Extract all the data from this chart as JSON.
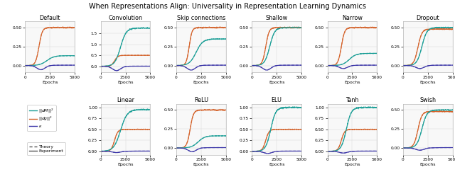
{
  "title": "When Representations Align: Universality in Representation Learning Dynamics",
  "subplots_row1": [
    "Default",
    "Convolution",
    "Skip connections",
    "Shallow",
    "Narrow",
    "Dropout"
  ],
  "subplots_row2": [
    "Linear",
    "ReLU",
    "ELU",
    "Tanh",
    "Swish"
  ],
  "xlabel": "Epochs",
  "x_ticks": [
    0,
    2500,
    5000
  ],
  "x_max": 5000,
  "colors": {
    "dM": "#1a9e96",
    "dg": "#d4622a",
    "kappa": "#3b35a8"
  },
  "subplot_params": {
    "Default": {
      "ylim": [
        -0.09,
        0.58
      ],
      "yticks": [
        0.0,
        0.25,
        0.5
      ],
      "dM_plateau": 0.13,
      "dM_x0": 2200,
      "dM_k": 0.0028,
      "dg_plateau": 0.5,
      "dg_x0": 1400,
      "dg_k": 0.006,
      "kappa_min": -0.055,
      "kappa_x0": 1600,
      "kappa_recover": 1800
    },
    "Convolution": {
      "ylim": [
        -0.28,
        2.05
      ],
      "yticks": [
        0.0,
        0.5,
        1.0,
        1.5
      ],
      "dM_plateau": 1.75,
      "dM_x0": 2000,
      "dM_k": 0.0035,
      "dg_plateau": 0.5,
      "dg_x0": 1400,
      "dg_k": 0.006,
      "kappa_min": -0.2,
      "kappa_x0": 1600,
      "kappa_recover": 1800
    },
    "Skip connections": {
      "ylim": [
        -0.09,
        0.58
      ],
      "yticks": [
        0.0,
        0.25,
        0.5
      ],
      "dM_plateau": 0.35,
      "dM_x0": 2000,
      "dM_k": 0.003,
      "dg_plateau": 0.5,
      "dg_x0": 1300,
      "dg_k": 0.007,
      "kappa_min": -0.06,
      "kappa_x0": 1500,
      "kappa_recover": 1700
    },
    "Shallow": {
      "ylim": [
        -0.09,
        0.58
      ],
      "yticks": [
        0.0,
        0.25,
        0.5
      ],
      "dM_plateau": 0.5,
      "dM_x0": 1800,
      "dM_k": 0.004,
      "dg_plateau": 0.5,
      "dg_x0": 1400,
      "dg_k": 0.006,
      "kappa_min": -0.06,
      "kappa_x0": 1500,
      "kappa_recover": 1700
    },
    "Narrow": {
      "ylim": [
        -0.09,
        0.58
      ],
      "yticks": [
        0.0,
        0.25,
        0.5
      ],
      "dM_plateau": 0.16,
      "dM_x0": 2200,
      "dM_k": 0.003,
      "dg_plateau": 0.5,
      "dg_x0": 1400,
      "dg_k": 0.006,
      "kappa_min": -0.04,
      "kappa_x0": 1600,
      "kappa_recover": 1800
    },
    "Dropout": {
      "ylim": [
        -0.09,
        0.58
      ],
      "yticks": [
        0.0,
        0.25,
        0.5
      ],
      "dM_plateau": 0.5,
      "dM_x0": 1900,
      "dM_k": 0.004,
      "dg_plateau": 0.48,
      "dg_x0": 1500,
      "dg_k": 0.005,
      "kappa_min": -0.04,
      "kappa_x0": 1700,
      "kappa_recover": 1900
    },
    "Linear": {
      "ylim": [
        -0.08,
        1.08
      ],
      "yticks": [
        0.0,
        0.25,
        0.5,
        0.75,
        1.0
      ],
      "dM_plateau": 0.95,
      "dM_x0": 2000,
      "dM_k": 0.003,
      "dg_plateau": 0.5,
      "dg_x0": 1400,
      "dg_k": 0.006,
      "kappa_min": -0.03,
      "kappa_x0": 1600,
      "kappa_recover": 1800
    },
    "ReLU": {
      "ylim": [
        -0.09,
        0.58
      ],
      "yticks": [
        0.0,
        0.25,
        0.5
      ],
      "dM_plateau": 0.16,
      "dM_x0": 2200,
      "dM_k": 0.003,
      "dg_plateau": 0.5,
      "dg_x0": 1400,
      "dg_k": 0.006,
      "kappa_min": -0.05,
      "kappa_x0": 1600,
      "kappa_recover": 1800
    },
    "ELU": {
      "ylim": [
        -0.08,
        1.08
      ],
      "yticks": [
        0.0,
        0.25,
        0.5,
        0.75,
        1.0
      ],
      "dM_plateau": 1.0,
      "dM_x0": 1900,
      "dM_k": 0.004,
      "dg_plateau": 0.5,
      "dg_x0": 1400,
      "dg_k": 0.006,
      "kappa_min": -0.05,
      "kappa_x0": 1600,
      "kappa_recover": 1800
    },
    "Tanh": {
      "ylim": [
        -0.08,
        1.08
      ],
      "yticks": [
        0.0,
        0.25,
        0.5,
        0.75,
        1.0
      ],
      "dM_plateau": 1.0,
      "dM_x0": 1900,
      "dM_k": 0.004,
      "dg_plateau": 0.5,
      "dg_x0": 1400,
      "dg_k": 0.006,
      "kappa_min": -0.04,
      "kappa_x0": 1600,
      "kappa_recover": 1800
    },
    "Swish": {
      "ylim": [
        -0.09,
        0.58
      ],
      "yticks": [
        0.0,
        0.25,
        0.5
      ],
      "dM_plateau": 0.5,
      "dM_x0": 1900,
      "dM_k": 0.004,
      "dg_plateau": 0.48,
      "dg_x0": 1500,
      "dg_k": 0.005,
      "kappa_min": -0.03,
      "kappa_x0": 1700,
      "kappa_recover": 2200
    }
  }
}
